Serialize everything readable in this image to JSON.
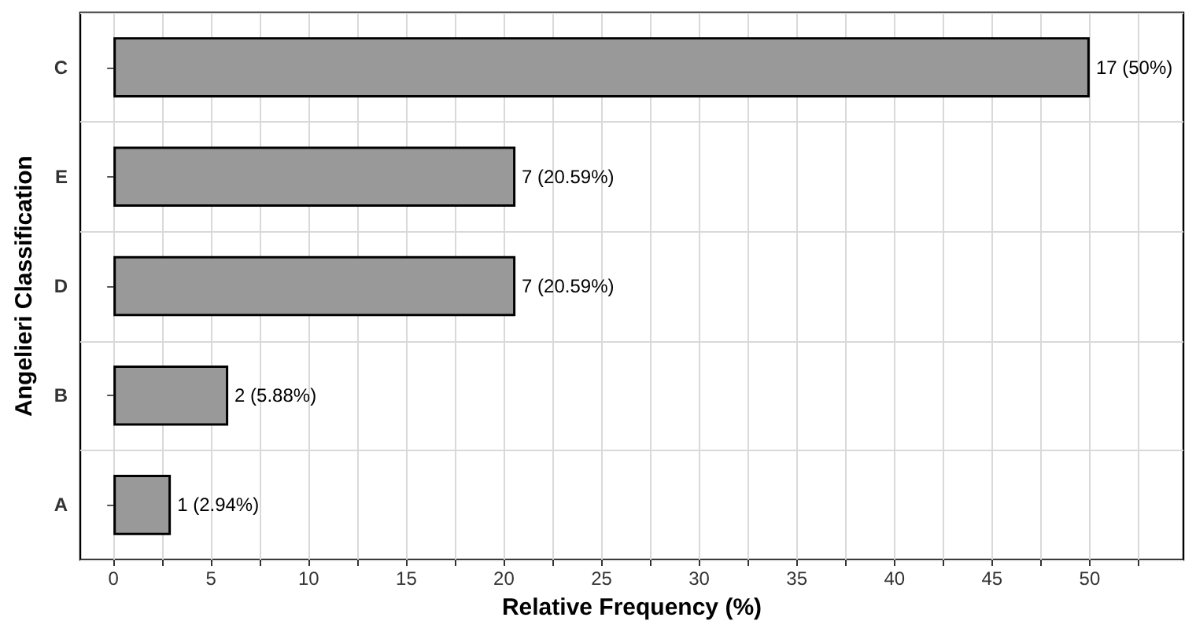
{
  "chart_data": {
    "type": "bar",
    "orientation": "horizontal",
    "xlabel": "Relative Frequency (%)",
    "ylabel": "Angelieri Classification",
    "categories": [
      "C",
      "E",
      "D",
      "B",
      "A"
    ],
    "values": [
      50,
      20.59,
      20.59,
      5.88,
      2.94
    ],
    "value_labels": [
      "17 (50%)",
      "7 (20.59%)",
      "7 (20.59%)",
      "2 (5.88%)",
      "1 (2.94%)"
    ],
    "color": "#999999",
    "xlim": [
      -1.7,
      54.8
    ],
    "xticks": [
      0,
      {
        "value": 2.5,
        "label": null
      },
      5,
      {
        "value": 7.5,
        "label": null
      },
      10,
      {
        "value": 12.5,
        "label": null
      },
      15,
      {
        "value": 17.5,
        "label": null
      },
      20,
      {
        "value": 22.5,
        "label": null
      },
      25,
      {
        "value": 27.5,
        "label": null
      },
      30,
      {
        "value": 32.5,
        "label": null
      },
      35,
      {
        "value": 37.5,
        "label": null
      },
      40,
      {
        "value": 42.5,
        "label": null
      },
      45,
      {
        "value": 47.5,
        "label": null
      },
      50,
      {
        "value": 52.5,
        "label": null
      }
    ],
    "grid": true
  }
}
